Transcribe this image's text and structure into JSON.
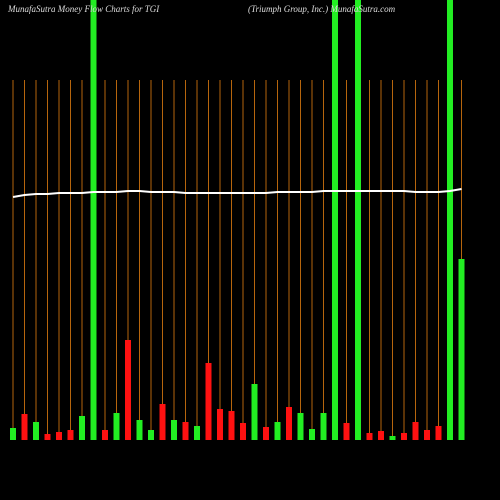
{
  "chart_data": {
    "type": "bar",
    "title": "MunafaSutra  Money Flow  Charts for TGI",
    "subtitle": "(Triumph Group, Inc.) MunafaSutra.com",
    "ylim": [
      0,
      440
    ],
    "background": "#000000",
    "guide_color": "#b5650d",
    "series": [
      {
        "type": "bar",
        "colors": [
          "#22ee22",
          "#ff1111",
          "#22ee22",
          "#ff1111",
          "#ff1111",
          "#ff1111",
          "#22ee22",
          "#22ee22",
          "#ff1111",
          "#22ee22",
          "#ff1111",
          "#22ee22",
          "#22ee22",
          "#ff1111",
          "#22ee22",
          "#ff1111",
          "#22ee22",
          "#ff1111",
          "#ff1111",
          "#ff1111",
          "#ff1111",
          "#22ee22",
          "#ff1111",
          "#22ee22",
          "#ff1111",
          "#22ee22",
          "#22ee22",
          "#22ee22",
          "#22ee22",
          "#ff1111",
          "#22ee22",
          "#ff1111",
          "#ff1111",
          "#22ee22",
          "#ff1111",
          "#ff1111",
          "#ff1111",
          "#ff1111",
          "#22ee22",
          "#22ee22"
        ],
        "values": [
          12,
          26,
          18,
          6,
          8,
          10,
          24,
          440,
          10,
          27,
          100,
          20,
          10,
          36,
          20,
          18,
          14,
          77,
          31,
          29,
          17,
          56,
          13,
          18,
          33,
          27,
          11,
          27,
          440,
          17,
          440,
          7,
          9,
          4,
          7,
          18,
          10,
          14,
          440,
          181
        ]
      },
      {
        "type": "line",
        "color": "#ffffff",
        "values": [
          243,
          245,
          246,
          246,
          247,
          247,
          247,
          248,
          248,
          248,
          249,
          249,
          248,
          248,
          248,
          247,
          247,
          247,
          247,
          247,
          247,
          247,
          247,
          248,
          248,
          248,
          248,
          249,
          249,
          249,
          249,
          249,
          249,
          249,
          249,
          248,
          248,
          248,
          249,
          251
        ]
      }
    ]
  }
}
